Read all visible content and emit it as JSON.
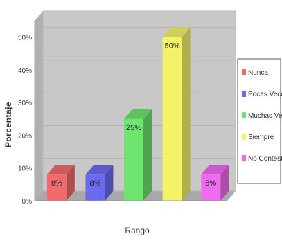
{
  "chart_data": {
    "type": "bar",
    "title": "",
    "xlabel": "Rango",
    "ylabel": "Porcentaje",
    "categories": [
      "Nunca",
      "Pocas Veces",
      "Muchas Veces",
      "Siempre",
      "No Contesto"
    ],
    "values": [
      8,
      8,
      25,
      50,
      8
    ],
    "data_labels": [
      "8%",
      "8%",
      "25%",
      "50%",
      "8%"
    ],
    "colors": [
      "#f06b6b",
      "#6b6bee",
      "#6ee56e",
      "#f3f36a",
      "#ef6bef"
    ],
    "ylim": [
      0,
      55
    ],
    "y_ticks": [
      "0%",
      "10%",
      "20%",
      "30%",
      "40%",
      "50%"
    ],
    "y_tick_values": [
      0,
      10,
      20,
      30,
      40,
      50
    ],
    "grid": true,
    "legend_position": "right",
    "background": "#c8c8c8"
  }
}
